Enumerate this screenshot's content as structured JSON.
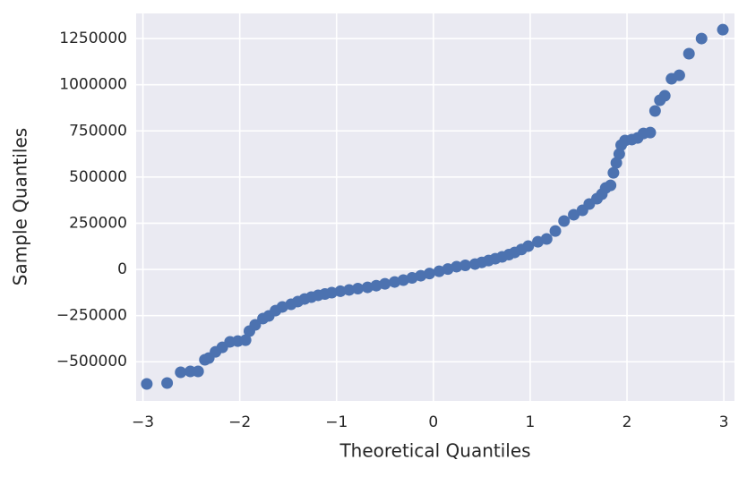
{
  "chart_data": {
    "type": "scatter",
    "xlabel": "Theoretical Quantiles",
    "ylabel": "Sample Quantiles",
    "color": "#4c72b0",
    "grid": true,
    "xlim": [
      -3.07,
      3.11
    ],
    "ylim": [
      -712000,
      1386000
    ],
    "xticks": [
      {
        "value": -3,
        "label": "−3"
      },
      {
        "value": -2,
        "label": "−2"
      },
      {
        "value": -1,
        "label": "−1"
      },
      0,
      1,
      2,
      3
    ],
    "yticks": [
      {
        "value": -500000,
        "label": "−500000"
      },
      {
        "value": -250000,
        "label": "−250000"
      },
      0,
      250000,
      500000,
      750000,
      1000000,
      1250000
    ],
    "x": [
      -2.96,
      -2.75,
      -2.61,
      -2.51,
      -2.43,
      -2.36,
      -2.32,
      -2.25,
      -2.18,
      -2.1,
      -2.02,
      -1.94,
      -1.9,
      -1.84,
      -1.76,
      -1.7,
      -1.63,
      -1.56,
      -1.47,
      -1.4,
      -1.33,
      -1.26,
      -1.19,
      -1.12,
      -1.05,
      -0.96,
      -0.87,
      -0.78,
      -0.68,
      -0.59,
      -0.5,
      -0.4,
      -0.31,
      -0.22,
      -0.13,
      -0.04,
      0.06,
      0.15,
      0.24,
      0.33,
      0.43,
      0.5,
      0.57,
      0.64,
      0.71,
      0.78,
      0.84,
      0.91,
      0.98,
      1.08,
      1.17,
      1.26,
      1.35,
      1.45,
      1.54,
      1.61,
      1.69,
      1.74,
      1.78,
      1.83,
      1.86,
      1.89,
      1.92,
      1.94,
      1.98,
      2.05,
      2.11,
      2.17,
      2.24,
      2.29,
      2.34,
      2.39,
      2.46,
      2.54,
      2.64,
      2.77,
      2.99
    ],
    "values": [
      -620000,
      -615000,
      -557000,
      -552000,
      -552000,
      -489000,
      -480000,
      -446000,
      -422000,
      -392000,
      -388000,
      -383000,
      -334000,
      -300000,
      -266000,
      -252000,
      -223000,
      -203000,
      -189000,
      -174000,
      -160000,
      -150000,
      -140000,
      -133000,
      -126000,
      -118000,
      -111000,
      -104000,
      -97000,
      -88000,
      -78000,
      -68000,
      -58000,
      -46000,
      -34000,
      -22000,
      -10000,
      2000,
      15000,
      22000,
      29000,
      38000,
      48000,
      58000,
      68000,
      80000,
      92000,
      108000,
      126000,
      150000,
      165000,
      208000,
      262000,
      296000,
      320000,
      354000,
      383000,
      407000,
      441000,
      455000,
      523000,
      577000,
      625000,
      673000,
      698000,
      703000,
      712000,
      736000,
      741000,
      858000,
      916000,
      940000,
      1032000,
      1051000,
      1168000,
      1250000,
      1298000
    ]
  }
}
